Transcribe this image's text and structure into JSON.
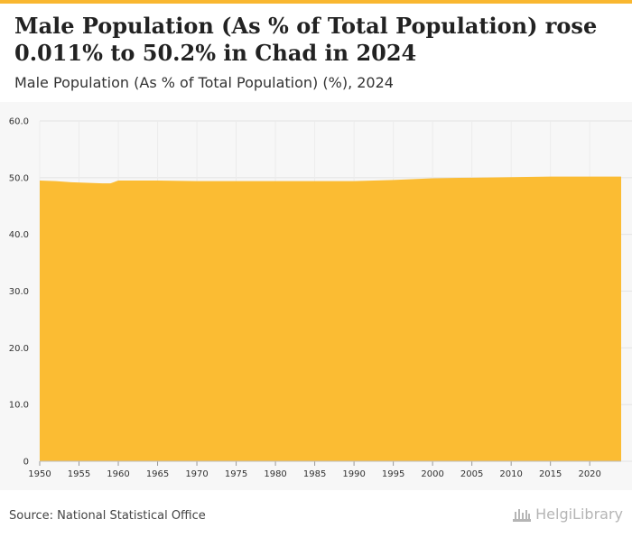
{
  "headline": "Male Population (As % of Total Population) rose 0.011% to 50.2% in Chad in 2024",
  "subtitle": "Male Population (As % of Total Population) (%), 2024",
  "source": "Source: National Statistical Office",
  "logo": {
    "text": "HelgiLibrary",
    "icon": "building-icon"
  },
  "colors": {
    "accent": "#f9b730",
    "area": "#fbbc33",
    "background": "#f7f7f7"
  },
  "chart_data": {
    "type": "area",
    "title": "Male Population (As % of Total Population) rose 0.011% to 50.2% in Chad in 2024",
    "subtitle": "Male Population (As % of Total Population) (%), 2024",
    "xlabel": "",
    "ylabel": "",
    "xlim": [
      1950,
      2024
    ],
    "ylim": [
      0,
      60
    ],
    "y_ticks": [
      0,
      10,
      20,
      30,
      40,
      50,
      60
    ],
    "y_tick_labels": [
      "0",
      "10.0",
      "20.0",
      "30.0",
      "40.0",
      "50.0",
      "60.0"
    ],
    "x_ticks": [
      1950,
      1955,
      1960,
      1965,
      1970,
      1975,
      1980,
      1985,
      1990,
      1995,
      2000,
      2005,
      2010,
      2015,
      2020
    ],
    "x_tick_labels": [
      "1950",
      "1955",
      "1960",
      "1965",
      "1970",
      "1975",
      "1980",
      "1985",
      "1990",
      "1995",
      "2000",
      "2005",
      "2010",
      "2015",
      "2020"
    ],
    "grid": true,
    "legend": false,
    "series": [
      {
        "x": [
          1950,
          1952,
          1954,
          1956,
          1958,
          1959,
          1960,
          1965,
          1970,
          1975,
          1980,
          1985,
          1990,
          1995,
          2000,
          2005,
          2010,
          2015,
          2020,
          2024
        ],
        "values": [
          49.5,
          49.4,
          49.2,
          49.1,
          49.0,
          49.0,
          49.5,
          49.5,
          49.4,
          49.4,
          49.4,
          49.4,
          49.4,
          49.6,
          49.9,
          50.0,
          50.1,
          50.2,
          50.2,
          50.2
        ]
      }
    ]
  }
}
